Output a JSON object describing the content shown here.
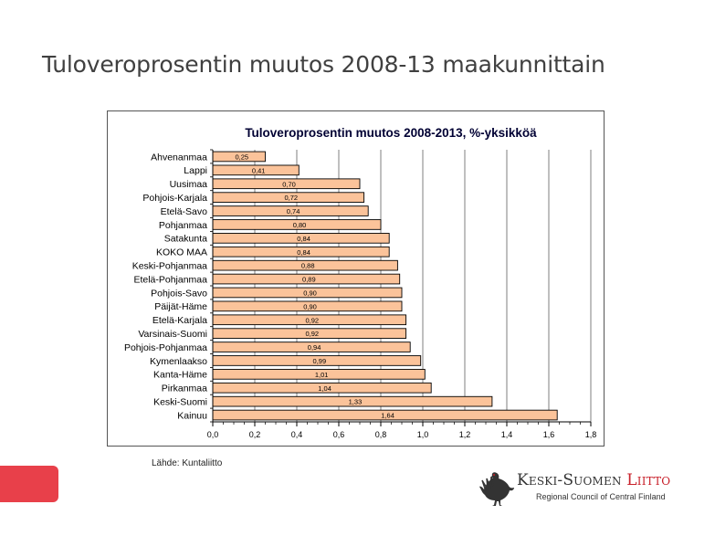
{
  "slide": {
    "title": "Tuloveroprosentin muutos 2008-13 maakunnittain",
    "source": "Lähde: Kuntaliitto"
  },
  "logo": {
    "name_part1": "Keski-Suomen ",
    "name_part2": "Liitto",
    "subtitle": "Regional Council of Central Finland",
    "icon": "capercaillie-bird-icon"
  },
  "colors": {
    "bar_fill": "#fbc39a",
    "bar_stroke": "#000000",
    "accent_red": "#e8404a",
    "title_blue": "#000033"
  },
  "chart_data": {
    "type": "bar",
    "orientation": "horizontal",
    "title": "Tuloveroprosentin muutos 2008-2013, %-yksikköä",
    "xlabel": "",
    "ylabel": "",
    "xlim": [
      0,
      1.8
    ],
    "grid": true,
    "legend": "none",
    "categories": [
      "Ahvenanmaa",
      "Lappi",
      "Uusimaa",
      "Pohjois-Karjala",
      "Etelä-Savo",
      "Pohjanmaa",
      "Satakunta",
      "KOKO MAA",
      "Keski-Pohjanmaa",
      "Etelä-Pohjanmaa",
      "Pohjois-Savo",
      "Päijät-Häme",
      "Etelä-Karjala",
      "Varsinais-Suomi",
      "Pohjois-Pohjanmaa",
      "Kymenlaakso",
      "Kanta-Häme",
      "Pirkanmaa",
      "Keski-Suomi",
      "Kainuu"
    ],
    "values": [
      0.25,
      0.41,
      0.7,
      0.72,
      0.74,
      0.8,
      0.84,
      0.84,
      0.88,
      0.89,
      0.9,
      0.9,
      0.92,
      0.92,
      0.94,
      0.99,
      1.01,
      1.04,
      1.33,
      1.64
    ],
    "value_labels": [
      "0,25",
      "0,41",
      "0,70",
      "0,72",
      "0,74",
      "0,80",
      "0,84",
      "0,84",
      "0,88",
      "0,89",
      "0,90",
      "0,90",
      "0,92",
      "0,92",
      "0,94",
      "0,99",
      "1,01",
      "1,04",
      "1,33",
      "1,64"
    ],
    "x_ticks": [
      0,
      0.2,
      0.4,
      0.6,
      0.8,
      1.0,
      1.2,
      1.4,
      1.6,
      1.8
    ],
    "x_tick_labels": [
      "0,0",
      "0,2",
      "0,4",
      "0,6",
      "0,8",
      "1,0",
      "1,2",
      "1,4",
      "1,6",
      "1,8"
    ]
  }
}
